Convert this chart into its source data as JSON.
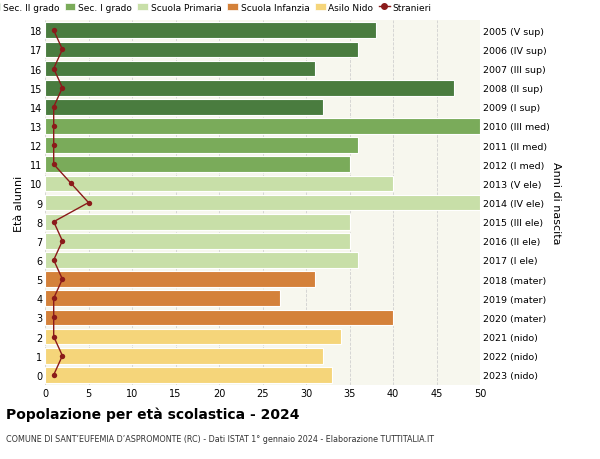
{
  "ages": [
    18,
    17,
    16,
    15,
    14,
    13,
    12,
    11,
    10,
    9,
    8,
    7,
    6,
    5,
    4,
    3,
    2,
    1,
    0
  ],
  "years": [
    "2005 (V sup)",
    "2006 (IV sup)",
    "2007 (III sup)",
    "2008 (II sup)",
    "2009 (I sup)",
    "2010 (III med)",
    "2011 (II med)",
    "2012 (I med)",
    "2013 (V ele)",
    "2014 (IV ele)",
    "2015 (III ele)",
    "2016 (II ele)",
    "2017 (I ele)",
    "2018 (mater)",
    "2019 (mater)",
    "2020 (mater)",
    "2021 (nido)",
    "2022 (nido)",
    "2023 (nido)"
  ],
  "bar_values": [
    38,
    36,
    31,
    47,
    32,
    50,
    36,
    35,
    40,
    50,
    35,
    35,
    36,
    31,
    27,
    40,
    34,
    32,
    33
  ],
  "bar_colors": [
    "#4a7c3f",
    "#4a7c3f",
    "#4a7c3f",
    "#4a7c3f",
    "#4a7c3f",
    "#7aab5a",
    "#7aab5a",
    "#7aab5a",
    "#c8dfa8",
    "#c8dfa8",
    "#c8dfa8",
    "#c8dfa8",
    "#c8dfa8",
    "#d4813a",
    "#d4813a",
    "#d4813a",
    "#f5d57a",
    "#f5d57a",
    "#f5d57a"
  ],
  "stranieri_values": [
    1,
    2,
    1,
    2,
    1,
    1,
    1,
    1,
    3,
    5,
    1,
    2,
    1,
    2,
    1,
    1,
    1,
    2,
    1
  ],
  "stranieri_color": "#8b1a1a",
  "legend_labels": [
    "Sec. II grado",
    "Sec. I grado",
    "Scuola Primaria",
    "Scuola Infanzia",
    "Asilo Nido",
    "Stranieri"
  ],
  "legend_colors": [
    "#4a7c3f",
    "#7aab5a",
    "#c8dfa8",
    "#d4813a",
    "#f5d57a",
    "#8b1a1a"
  ],
  "title": "Popolazione per età scolastica - 2024",
  "subtitle": "COMUNE DI SANT’EUFEMIA D’ASPROMONTE (RC) - Dati ISTAT 1° gennaio 2024 - Elaborazione TUTTITALIA.IT",
  "xlabel_right": "Anni di nascita",
  "ylabel": "Età alunni",
  "xlim": [
    0,
    50
  ],
  "plot_bg": "#f7f7ee",
  "background_color": "#ffffff",
  "grid_color": "#d0d0d0"
}
